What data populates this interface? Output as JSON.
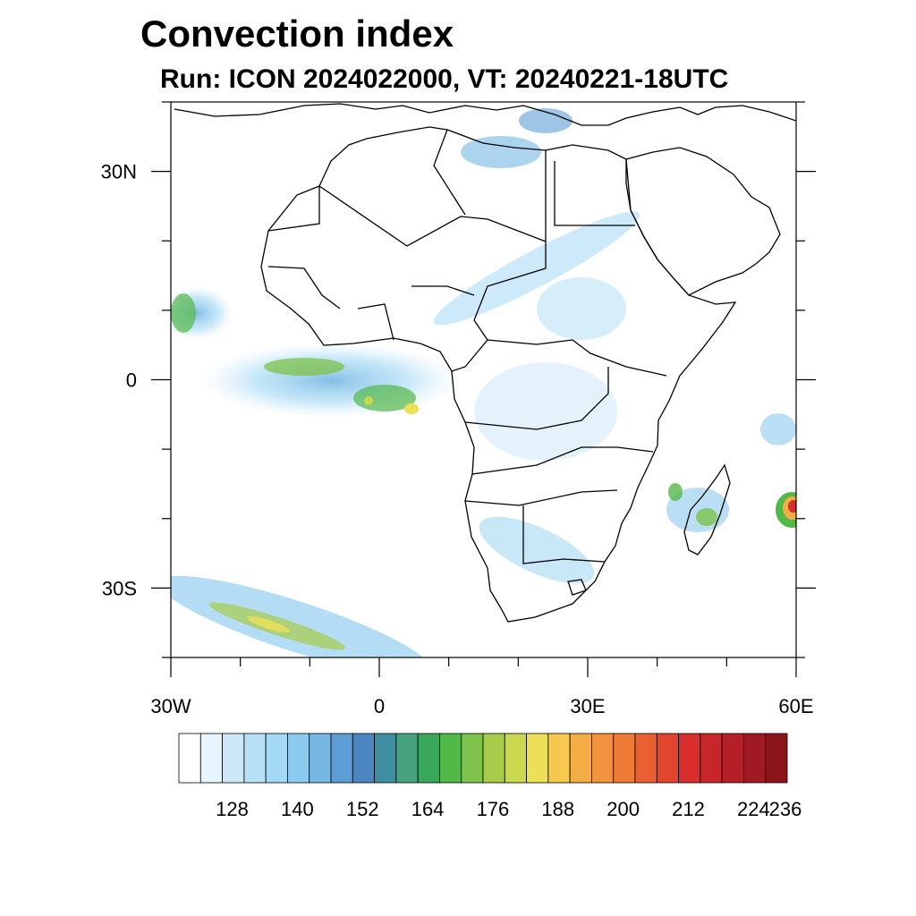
{
  "title": "Convection index",
  "subtitle": "Run: ICON 2024022000,  VT: 20240221-18UTC",
  "map": {
    "lon_range": [
      -30,
      60
    ],
    "lat_range": [
      -40,
      40
    ],
    "lon_ticks": [
      {
        "value": -30,
        "label": "30W"
      },
      {
        "value": 0,
        "label": "0"
      },
      {
        "value": 30,
        "label": "30E"
      },
      {
        "value": 60,
        "label": "60E"
      }
    ],
    "lat_ticks": [
      {
        "value": 30,
        "label": "30N"
      },
      {
        "value": 0,
        "label": "0"
      },
      {
        "value": -30,
        "label": "30S"
      }
    ]
  },
  "colorbar": {
    "tick_labels": [
      "128",
      "140",
      "152",
      "164",
      "176",
      "188",
      "200",
      "212",
      "224",
      "236"
    ],
    "colors": [
      "#ffffff",
      "#e6f4fb",
      "#cde9f7",
      "#b5e0f5",
      "#a3d9f4",
      "#8ccaef",
      "#77b7e4",
      "#5e9ed6",
      "#4b86c3",
      "#3f8fa0",
      "#46a37d",
      "#3aa85a",
      "#52b848",
      "#7dc24a",
      "#a6cc4a",
      "#c9d84f",
      "#ede057",
      "#f6c94e",
      "#f4ad45",
      "#f2923c",
      "#ee7a35",
      "#ea6131",
      "#e2452e",
      "#d92f2c",
      "#c8262b",
      "#b51f27",
      "#9f1a22",
      "#8a161c"
    ]
  },
  "colors": {
    "coast": "#000000",
    "background": "#ffffff"
  }
}
